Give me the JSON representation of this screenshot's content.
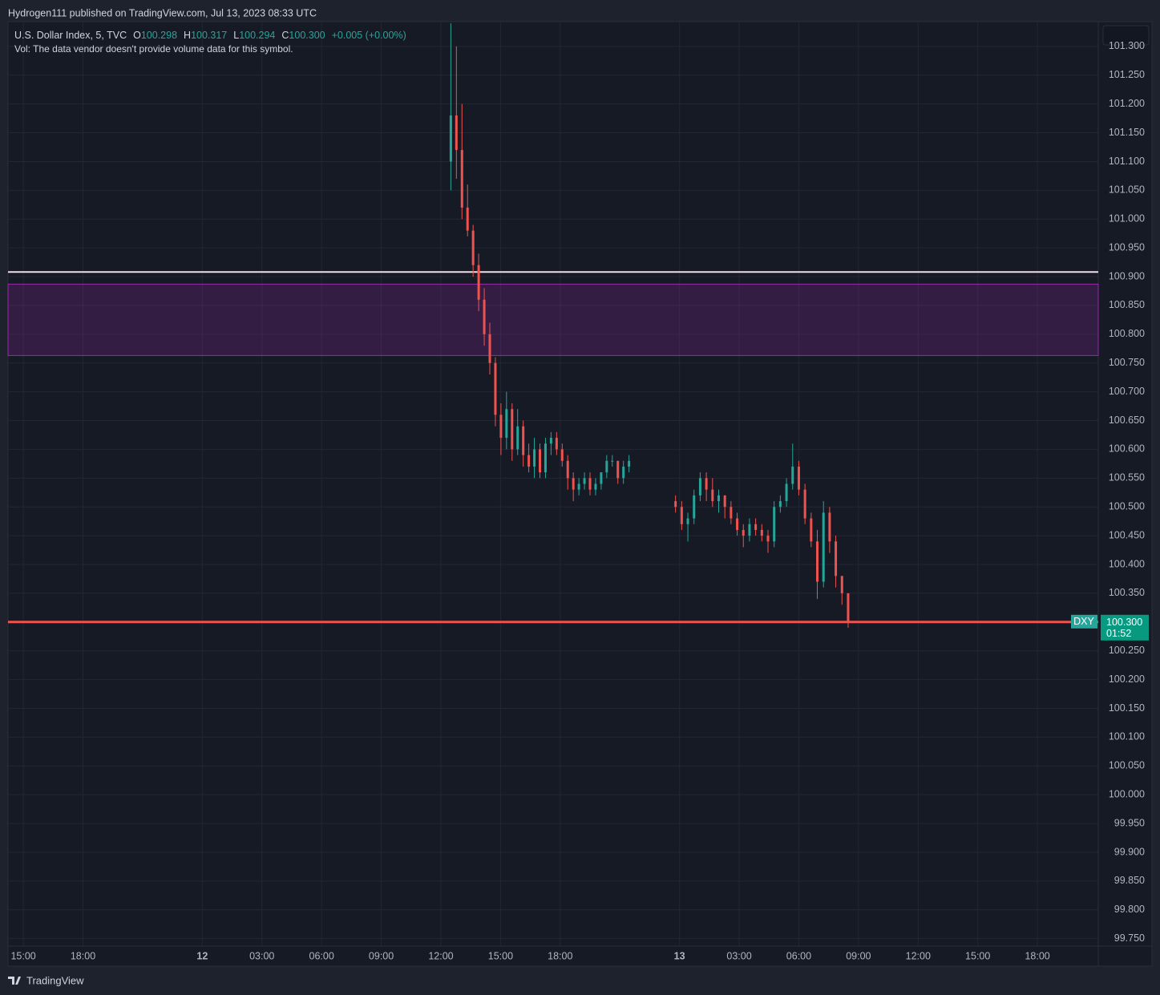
{
  "header": {
    "title": "Hydrogen111 published on TradingView.com, Jul 13, 2023 08:33 UTC"
  },
  "footer": {
    "brand": "TradingView"
  },
  "chart_data": {
    "type": "candlestick",
    "title": "U.S. Dollar Index, 5, TVC",
    "ohlc_legend": [
      {
        "key": "O",
        "value": "100.298"
      },
      {
        "key": "H",
        "value": "100.317"
      },
      {
        "key": "L",
        "value": "100.294"
      },
      {
        "key": "C",
        "value": "100.300"
      }
    ],
    "change": "+0.005 (+0.00%)",
    "volume_note": "Vol: The data vendor doesn't provide volume data for this symbol.",
    "symbol": "DXY",
    "last_price": 100.3,
    "last_price_label": "100.300",
    "countdown": "01:52",
    "up_color": "#26a69a",
    "down_color": "#ef5350",
    "grid": true,
    "level_line": {
      "value": 100.908,
      "color": "#f6dbe9"
    },
    "zone": {
      "from": 100.763,
      "to": 100.887,
      "color": "#9c27b0"
    },
    "xlim": [
      14.23,
      69.06
    ],
    "xticks": [
      {
        "value": 15,
        "label": "15:00"
      },
      {
        "value": 18,
        "label": "18:00"
      },
      {
        "value": 24,
        "label": "12"
      },
      {
        "value": 27,
        "label": "03:00"
      },
      {
        "value": 30,
        "label": "06:00"
      },
      {
        "value": 33,
        "label": "09:00"
      },
      {
        "value": 36,
        "label": "12:00"
      },
      {
        "value": 39,
        "label": "15:00"
      },
      {
        "value": 42,
        "label": "18:00"
      },
      {
        "value": 48,
        "label": "13"
      },
      {
        "value": 51,
        "label": "03:00"
      },
      {
        "value": 54,
        "label": "06:00"
      },
      {
        "value": 57,
        "label": "09:00"
      },
      {
        "value": 60,
        "label": "12:00"
      },
      {
        "value": 63,
        "label": "15:00"
      },
      {
        "value": 66,
        "label": "18:00"
      }
    ],
    "ylim": [
      99.737,
      101.343
    ],
    "yticks": [
      {
        "value": 99.75,
        "label": "99.750"
      },
      {
        "value": 99.8,
        "label": "99.800"
      },
      {
        "value": 99.85,
        "label": "99.850"
      },
      {
        "value": 99.9,
        "label": "99.900"
      },
      {
        "value": 99.95,
        "label": "99.950"
      },
      {
        "value": 100,
        "label": "100.000"
      },
      {
        "value": 100.05,
        "label": "100.050"
      },
      {
        "value": 100.1,
        "label": "100.100"
      },
      {
        "value": 100.15,
        "label": "100.150"
      },
      {
        "value": 100.2,
        "label": "100.200"
      },
      {
        "value": 100.25,
        "label": "100.250"
      },
      {
        "value": 100.35,
        "label": "100.350"
      },
      {
        "value": 100.4,
        "label": "100.400"
      },
      {
        "value": 100.45,
        "label": "100.450"
      },
      {
        "value": 100.5,
        "label": "100.500"
      },
      {
        "value": 100.55,
        "label": "100.550"
      },
      {
        "value": 100.6,
        "label": "100.600"
      },
      {
        "value": 100.65,
        "label": "100.650"
      },
      {
        "value": 100.7,
        "label": "100.700"
      },
      {
        "value": 100.75,
        "label": "100.750"
      },
      {
        "value": 100.8,
        "label": "100.800"
      },
      {
        "value": 100.85,
        "label": "100.850"
      },
      {
        "value": 100.9,
        "label": "100.900"
      },
      {
        "value": 100.95,
        "label": "100.950"
      },
      {
        "value": 101,
        "label": "101.000"
      },
      {
        "value": 101.05,
        "label": "101.050"
      },
      {
        "value": 101.1,
        "label": "101.100"
      },
      {
        "value": 101.15,
        "label": "101.150"
      },
      {
        "value": 101.2,
        "label": "101.200"
      },
      {
        "value": 101.25,
        "label": "101.250"
      },
      {
        "value": 101.3,
        "label": "101.300"
      }
    ],
    "x": [
      36.5,
      36.78,
      37.06,
      37.34,
      37.62,
      37.9,
      38.18,
      38.46,
      38.74,
      39.02,
      39.3,
      39.58,
      39.86,
      40.14,
      40.42,
      40.7,
      40.98,
      41.26,
      41.54,
      41.82,
      42.1,
      42.38,
      42.66,
      42.94,
      43.22,
      43.5,
      43.78,
      44.06,
      44.34,
      44.62,
      44.9,
      45.18,
      45.46,
      47.8,
      48.11,
      48.42,
      48.73,
      49.04,
      49.35,
      49.66,
      49.97,
      50.28,
      50.59,
      50.9,
      51.21,
      51.52,
      51.83,
      52.14,
      52.45,
      52.76,
      53.07,
      53.38,
      53.69,
      54.0,
      54.31,
      54.62,
      54.93,
      55.24,
      55.55,
      55.86,
      56.17,
      56.48
    ],
    "open": [
      101.1,
      101.18,
      101.12,
      101.02,
      100.98,
      100.92,
      100.86,
      100.8,
      100.75,
      100.66,
      100.62,
      100.67,
      100.6,
      100.64,
      100.59,
      100.57,
      100.6,
      100.56,
      100.61,
      100.62,
      100.6,
      100.58,
      100.55,
      100.53,
      100.54,
      100.55,
      100.53,
      100.54,
      100.56,
      100.58,
      100.58,
      100.55,
      100.57,
      100.51,
      100.5,
      100.47,
      100.48,
      100.52,
      100.55,
      100.53,
      100.51,
      100.52,
      100.5,
      100.48,
      100.46,
      100.45,
      100.47,
      100.46,
      100.45,
      100.44,
      100.5,
      100.51,
      100.54,
      100.57,
      100.53,
      100.48,
      100.44,
      100.37,
      100.49,
      100.44,
      100.38,
      100.35
    ],
    "high": [
      101.34,
      101.3,
      101.2,
      101.06,
      100.99,
      100.94,
      100.88,
      100.82,
      100.76,
      100.68,
      100.7,
      100.68,
      100.67,
      100.65,
      100.61,
      100.62,
      100.61,
      100.62,
      100.63,
      100.63,
      100.61,
      100.59,
      100.56,
      100.55,
      100.56,
      100.56,
      100.55,
      100.56,
      100.59,
      100.59,
      100.58,
      100.58,
      100.59,
      100.52,
      100.51,
      100.49,
      100.53,
      100.56,
      100.56,
      100.55,
      100.53,
      100.52,
      100.51,
      100.49,
      100.47,
      100.48,
      100.48,
      100.47,
      100.46,
      100.51,
      100.52,
      100.55,
      100.61,
      100.58,
      100.54,
      100.49,
      100.46,
      100.51,
      100.5,
      100.45,
      100.38,
      100.35
    ],
    "low": [
      101.05,
      101.07,
      101.0,
      100.97,
      100.9,
      100.84,
      100.78,
      100.73,
      100.64,
      100.59,
      100.6,
      100.58,
      100.59,
      100.57,
      100.56,
      100.55,
      100.55,
      100.55,
      100.59,
      100.59,
      100.57,
      100.53,
      100.51,
      100.52,
      100.53,
      100.52,
      100.52,
      100.53,
      100.55,
      100.57,
      100.54,
      100.54,
      100.56,
      100.49,
      100.46,
      100.44,
      100.47,
      100.51,
      100.51,
      100.5,
      100.49,
      100.48,
      100.47,
      100.45,
      100.43,
      100.44,
      100.45,
      100.44,
      100.42,
      100.43,
      100.49,
      100.5,
      100.53,
      100.52,
      100.47,
      100.43,
      100.34,
      100.36,
      100.42,
      100.36,
      100.33,
      100.29
    ],
    "close": [
      101.18,
      101.12,
      101.02,
      100.98,
      100.92,
      100.86,
      100.8,
      100.75,
      100.66,
      100.62,
      100.67,
      100.6,
      100.64,
      100.59,
      100.57,
      100.6,
      100.56,
      100.61,
      100.62,
      100.6,
      100.58,
      100.55,
      100.53,
      100.54,
      100.55,
      100.53,
      100.54,
      100.56,
      100.58,
      100.58,
      100.55,
      100.57,
      100.58,
      100.5,
      100.47,
      100.48,
      100.52,
      100.55,
      100.53,
      100.51,
      100.52,
      100.5,
      100.48,
      100.46,
      100.45,
      100.47,
      100.46,
      100.45,
      100.44,
      100.5,
      100.51,
      100.54,
      100.57,
      100.53,
      100.48,
      100.44,
      100.37,
      100.49,
      100.44,
      100.38,
      100.35,
      100.3
    ]
  }
}
